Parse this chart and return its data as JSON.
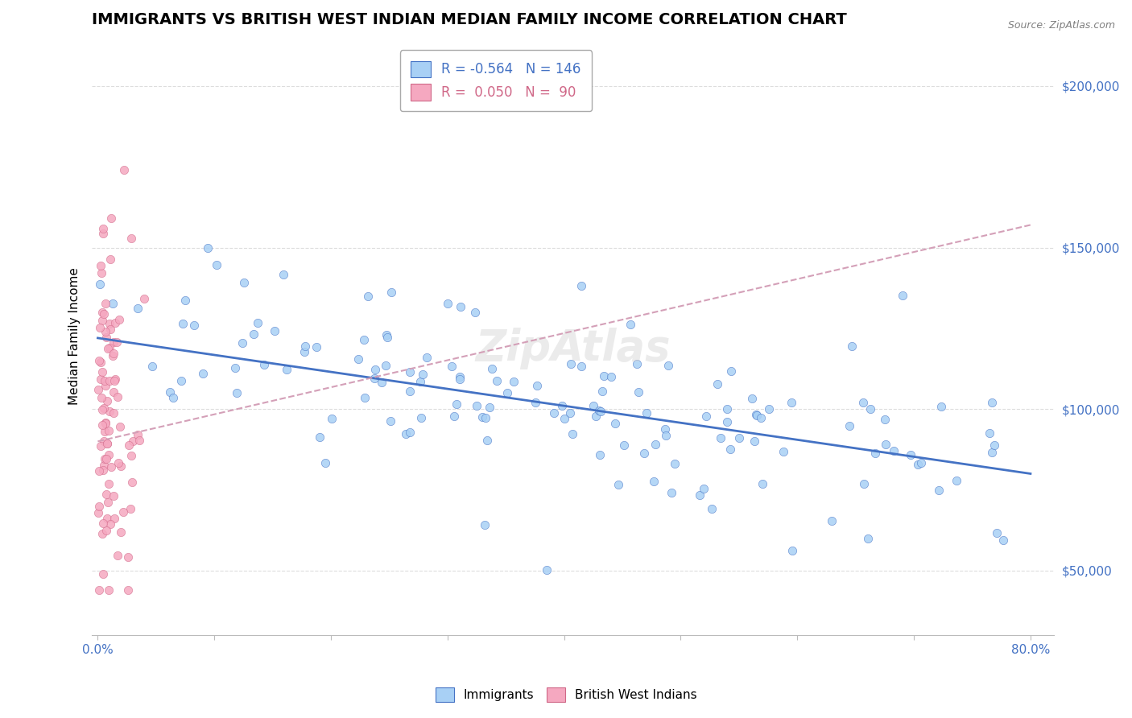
{
  "title": "IMMIGRANTS VS BRITISH WEST INDIAN MEDIAN FAMILY INCOME CORRELATION CHART",
  "source": "Source: ZipAtlas.com",
  "ylabel": "Median Family Income",
  "ylim": [
    30000,
    215000
  ],
  "xlim": [
    -0.005,
    0.82
  ],
  "yticks": [
    50000,
    100000,
    150000,
    200000
  ],
  "ytick_labels": [
    "$50,000",
    "$100,000",
    "$150,000",
    "$200,000"
  ],
  "blue_R": -0.564,
  "blue_N": 146,
  "pink_R": 0.05,
  "pink_N": 90,
  "blue_color": "#A8D0F5",
  "pink_color": "#F5A8C0",
  "blue_line_color": "#4472C4",
  "pink_trend_color": "#D4A0B8",
  "watermark": "ZipAtlas",
  "legend_label_blue": "Immigrants",
  "legend_label_pink": "British West Indians",
  "title_fontsize": 14,
  "axis_label_fontsize": 11,
  "tick_fontsize": 11
}
